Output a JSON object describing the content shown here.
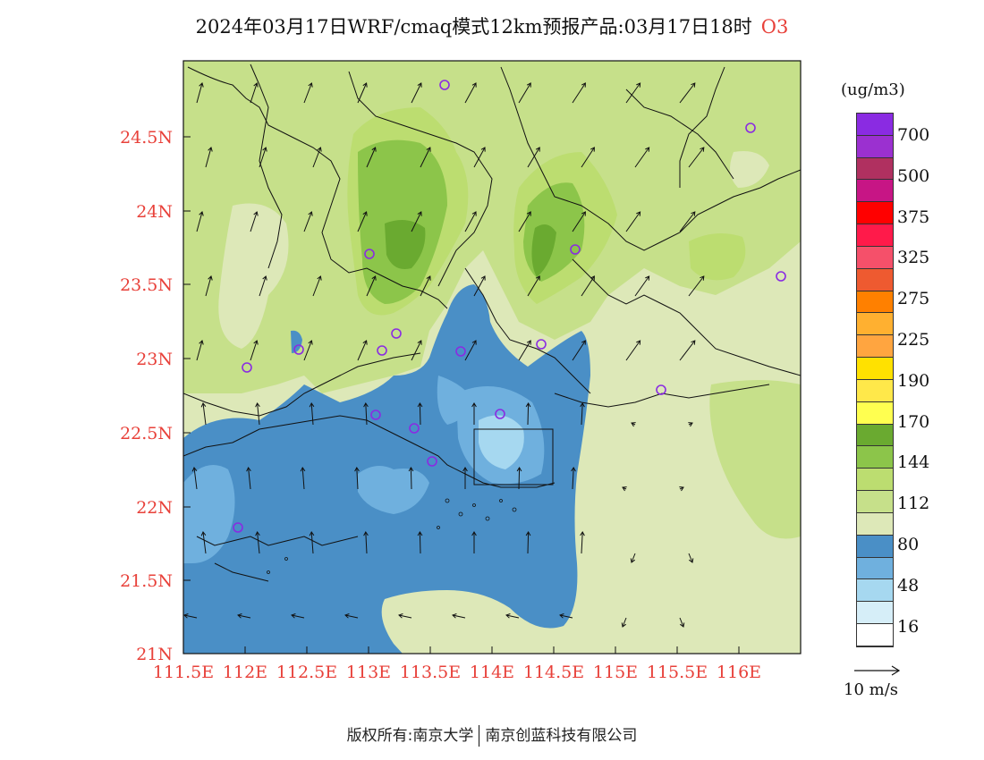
{
  "title": {
    "main": "2024年03月17日WRF/cmaq模式12km预报产品:03月17日18时",
    "variable": "O3"
  },
  "map": {
    "lat_labels": [
      "24.5N",
      "24N",
      "23.5N",
      "23N",
      "22.5N",
      "22N",
      "21.5N",
      "21N"
    ],
    "lon_labels": [
      "111.5E",
      "112E",
      "112.5E",
      "113E",
      "113.5E",
      "114E",
      "114.5E",
      "115E",
      "115.5E",
      "116E"
    ],
    "label_color": "#e8413a"
  },
  "legend": {
    "unit": "(ug/m3)",
    "labels": [
      "700",
      "500",
      "375",
      "325",
      "275",
      "225",
      "190",
      "170",
      "144",
      "112",
      "80",
      "48",
      "16"
    ],
    "colors": [
      "#8a2be2",
      "#9b30d0",
      "#b03060",
      "#c71585",
      "#ff0000",
      "#ff1a4a",
      "#f5506a",
      "#ee5a30",
      "#ff8000",
      "#ffb030",
      "#ffa540",
      "#ffe100",
      "#ffe84a",
      "#ffff50",
      "#6aaa30",
      "#8cc54a",
      "#bcdd70",
      "#c6e08a",
      "#dde8b8",
      "#4a8fc6",
      "#6fb0de",
      "#a6d8f0",
      "#d6eef8",
      "#ffffff"
    ],
    "vector_label": "10 m/s"
  },
  "footer": {
    "left": "版权所有:南京大学",
    "right": "南京创蓝科技有限公司"
  }
}
